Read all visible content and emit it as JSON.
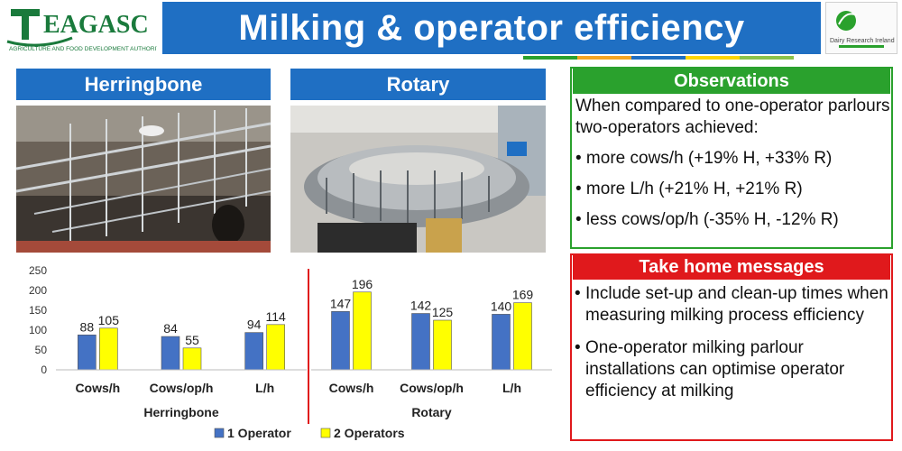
{
  "header": {
    "title": "Milking & operator efficiency",
    "left_logo": {
      "wordmark": "TEAGASC",
      "subtitle": "AGRICULTURE AND FOOD DEVELOPMENT AUTHORITY"
    },
    "right_logo": {
      "name": "Dairy Research Ireland"
    }
  },
  "sections": {
    "herringbone_label": "Herringbone",
    "rotary_label": "Rotary"
  },
  "observations": {
    "title": "Observations",
    "intro": "When compared to one-operator parlours two-operators achieved:",
    "bullets": [
      "• more cows/h (+19% H, +33% R)",
      "• more L/h (+21% H, +21% R)",
      "• less cows/op/h (-35% H, -12% R)"
    ]
  },
  "take_home": {
    "title": "Take home messages",
    "items": [
      "Include set-up and clean-up times when measuring milking process efficiency",
      "One-operator milking parlour installations can optimise operator efficiency at milking"
    ]
  },
  "colors": {
    "title_blue": "#1f6fc3",
    "green": "#2aa12d",
    "red": "#e0191c",
    "series_1": "#4472c4",
    "series_2": "#ffff00"
  },
  "chart_data": {
    "type": "bar",
    "ylim": [
      0,
      250
    ],
    "yticks": [
      0,
      50,
      100,
      150,
      200,
      250
    ],
    "groups": [
      {
        "name": "Herringbone",
        "categories": [
          "Cows/h",
          "Cows/op/h",
          "L/h"
        ],
        "series_values": [
          [
            88,
            84,
            94
          ],
          [
            105,
            55,
            114
          ]
        ]
      },
      {
        "name": "Rotary",
        "categories": [
          "Cows/h",
          "Cows/op/h",
          "L/h"
        ],
        "series_values": [
          [
            147,
            142,
            140
          ],
          [
            196,
            125,
            169
          ]
        ]
      }
    ],
    "series": [
      {
        "name": "1 Operator"
      },
      {
        "name": "2 Operators"
      }
    ],
    "legend_position": "bottom",
    "grid": false
  }
}
